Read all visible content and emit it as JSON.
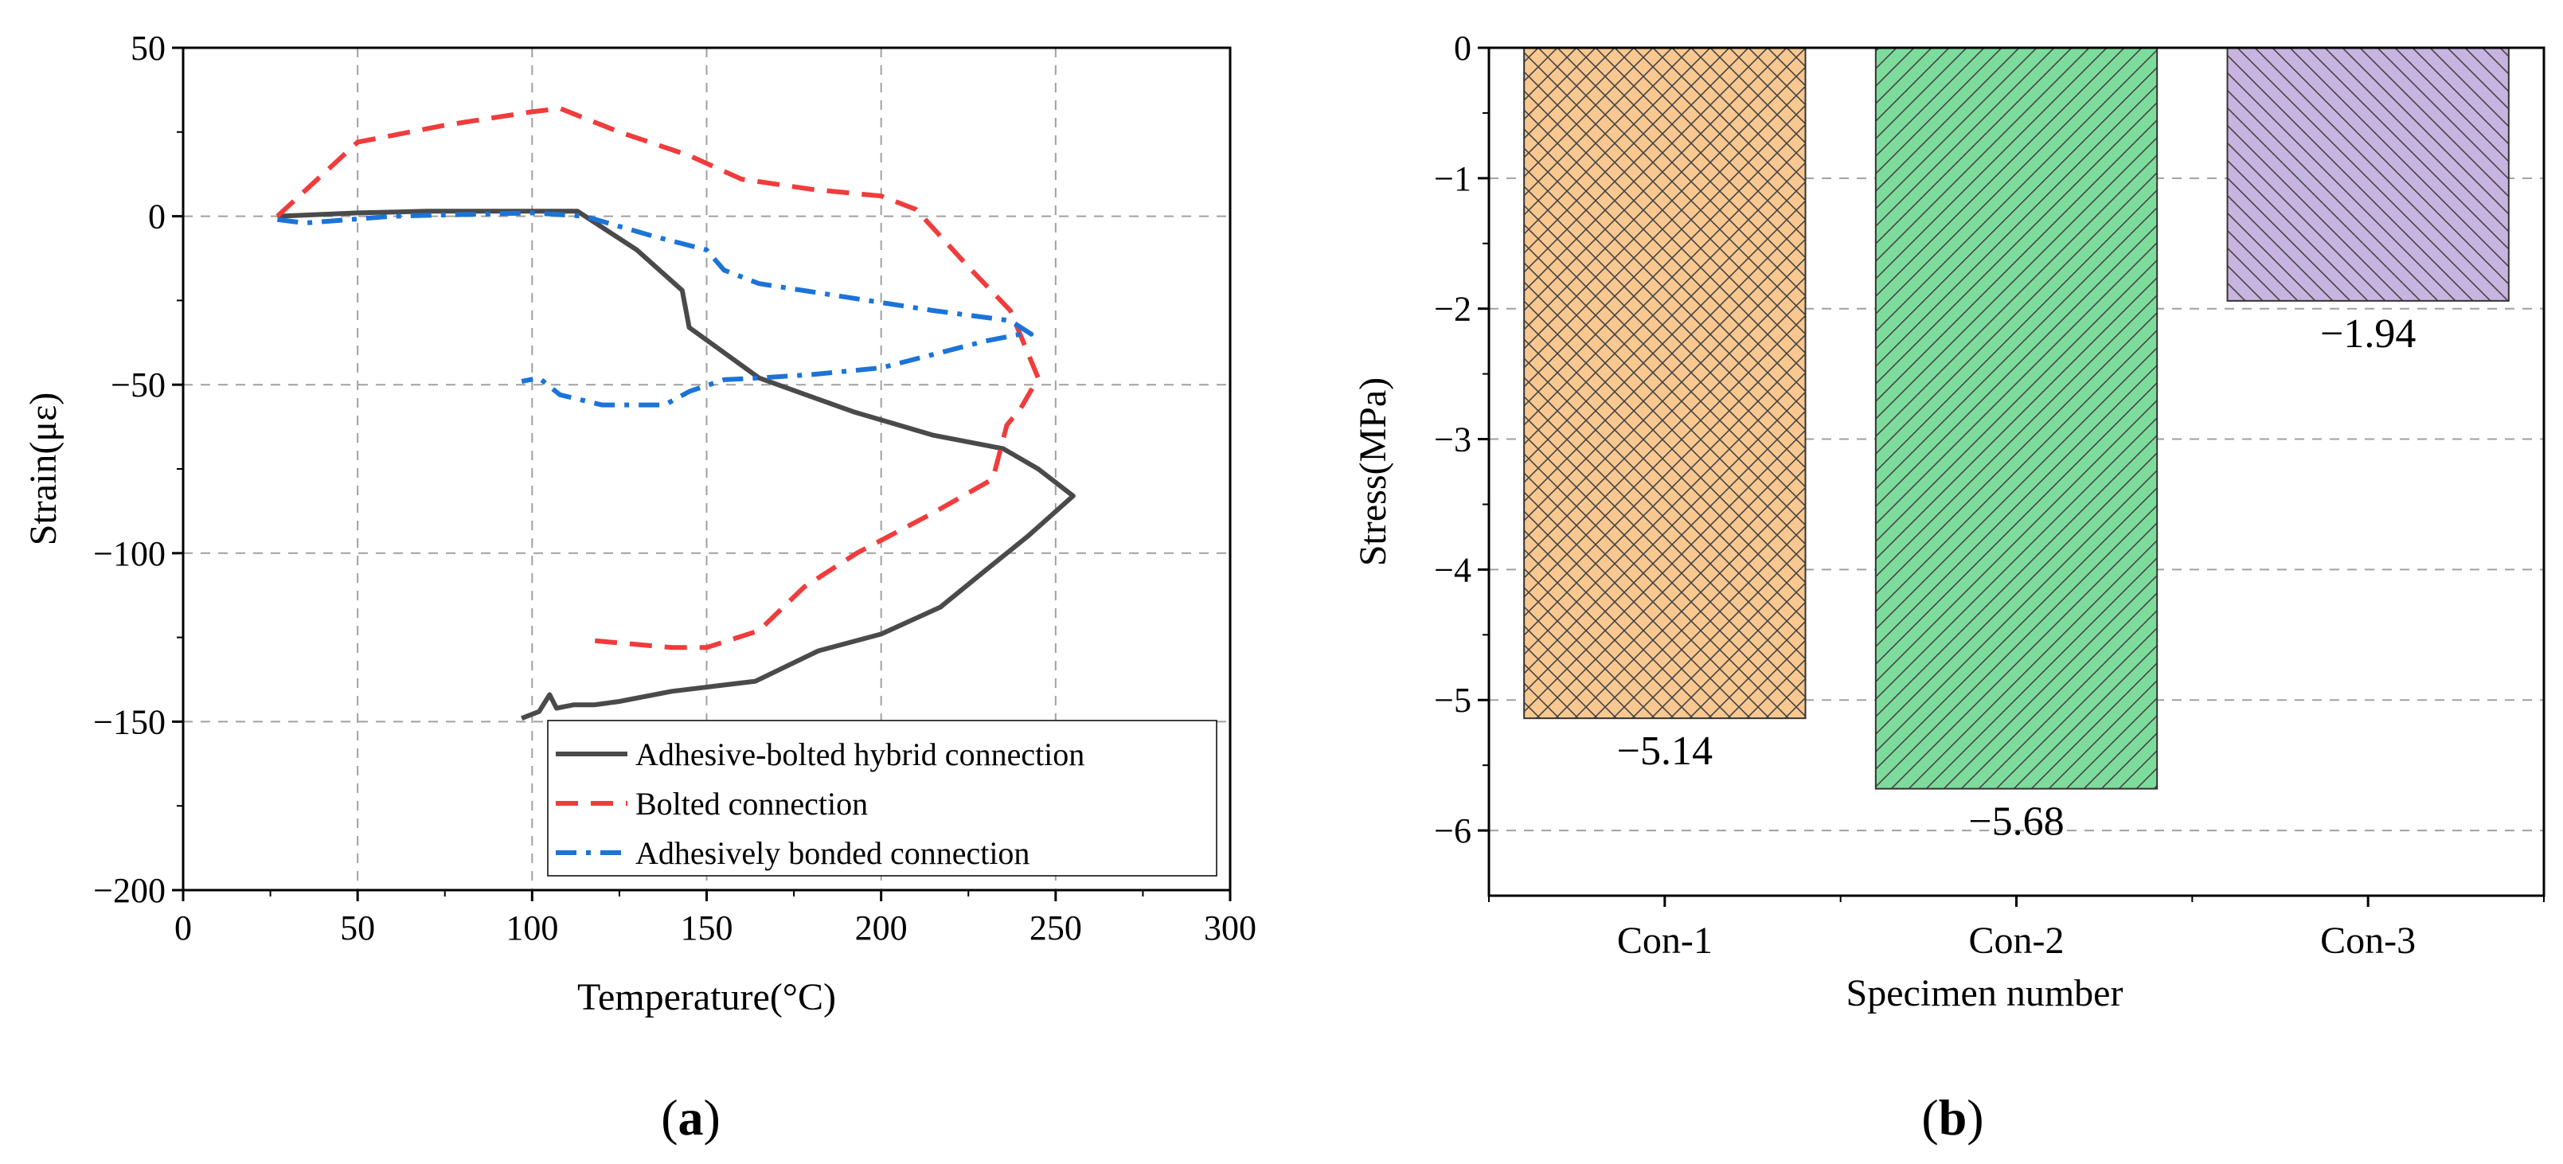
{
  "colors": {
    "series1": "#4a4a4a",
    "series2": "#f03c3c",
    "series3": "#1b74d8",
    "bar1": "#f8c890",
    "bar2": "#7ddc9c",
    "bar3": "#c8b4e0",
    "grid": "#a0a0a0",
    "axis": "#000000"
  },
  "panel_labels": [
    "a",
    "b"
  ],
  "chart_data": [
    {
      "type": "line",
      "xlabel": "Temperature(°C)",
      "ylabel": "Strain(με)",
      "xlim": [
        0,
        300
      ],
      "ylim": [
        -200,
        50
      ],
      "xticks": [
        0,
        50,
        100,
        150,
        200,
        250,
        300
      ],
      "yticks": [
        50,
        0,
        -50,
        -100,
        -150,
        -200
      ],
      "xtick_labels": [
        "0",
        "50",
        "100",
        "150",
        "200",
        "250",
        "300"
      ],
      "ytick_labels": [
        "50",
        "0",
        "−50",
        "−100",
        "−150",
        "−200"
      ],
      "grid": true,
      "legend_position": "bottom-right",
      "series": [
        {
          "name": "Adhesive-bolted hybrid connection",
          "style": "solid",
          "x": [
            27,
            50,
            70,
            90,
            100,
            113,
            130,
            143,
            145,
            165,
            192,
            215,
            235,
            245,
            255,
            242,
            230,
            217,
            200,
            182,
            164,
            140,
            125,
            118,
            112,
            107,
            105,
            102,
            97
          ],
          "y": [
            0,
            1,
            1.5,
            1.5,
            1.5,
            1.5,
            -10,
            -22,
            -33,
            -48,
            -58,
            -65,
            -69,
            -75,
            -83,
            -95,
            -105,
            -116,
            -124,
            -129,
            -138,
            -141,
            -144,
            -145,
            -145,
            -146,
            -142,
            -147,
            -149
          ]
        },
        {
          "name": "Bolted connection",
          "style": "dashed",
          "x": [
            27,
            50,
            75,
            100,
            108,
            125,
            145,
            160,
            180,
            200,
            210,
            225,
            237,
            245,
            240,
            236,
            232,
            215,
            193,
            178,
            165,
            150,
            140,
            118
          ],
          "y": [
            0,
            22,
            27,
            31,
            32,
            25,
            18,
            11,
            8,
            6,
            2,
            -15,
            -28,
            -48,
            -57,
            -62,
            -78,
            -88,
            -100,
            -110,
            -123,
            -128,
            -128,
            -126
          ]
        },
        {
          "name": "Adhesively bonded connection",
          "style": "dashdot",
          "x": [
            27,
            35,
            60,
            80,
            100,
            115,
            135,
            150,
            155,
            165,
            190,
            215,
            237,
            243,
            240,
            230,
            200,
            180,
            165,
            155,
            145,
            138,
            120,
            108,
            102,
            97
          ],
          "y": [
            -1,
            -2,
            0,
            0.5,
            1,
            0,
            -6,
            -10,
            -16,
            -20,
            -24,
            -28,
            -31,
            -35,
            -35,
            -37,
            -45,
            -47,
            -48,
            -48.5,
            -52,
            -56,
            -56,
            -53,
            -48,
            -49
          ]
        }
      ]
    },
    {
      "type": "bar",
      "xlabel": "Specimen number",
      "ylabel": "Stress(MPa)",
      "ylim": [
        -6.5,
        0
      ],
      "yticks": [
        0,
        -1,
        -2,
        -3,
        -4,
        -5,
        -6
      ],
      "ytick_labels": [
        "0",
        "−1",
        "−2",
        "−3",
        "−4",
        "−5",
        "−6"
      ],
      "grid": true,
      "categories": [
        "Con-1",
        "Con-2",
        "Con-3"
      ],
      "values": [
        -5.14,
        -5.68,
        -1.94
      ],
      "data_labels": [
        "−5.14",
        "−5.68",
        "−1.94"
      ],
      "hatch": [
        "crosshatch",
        "diagonal-up",
        "diagonal-down"
      ]
    }
  ]
}
